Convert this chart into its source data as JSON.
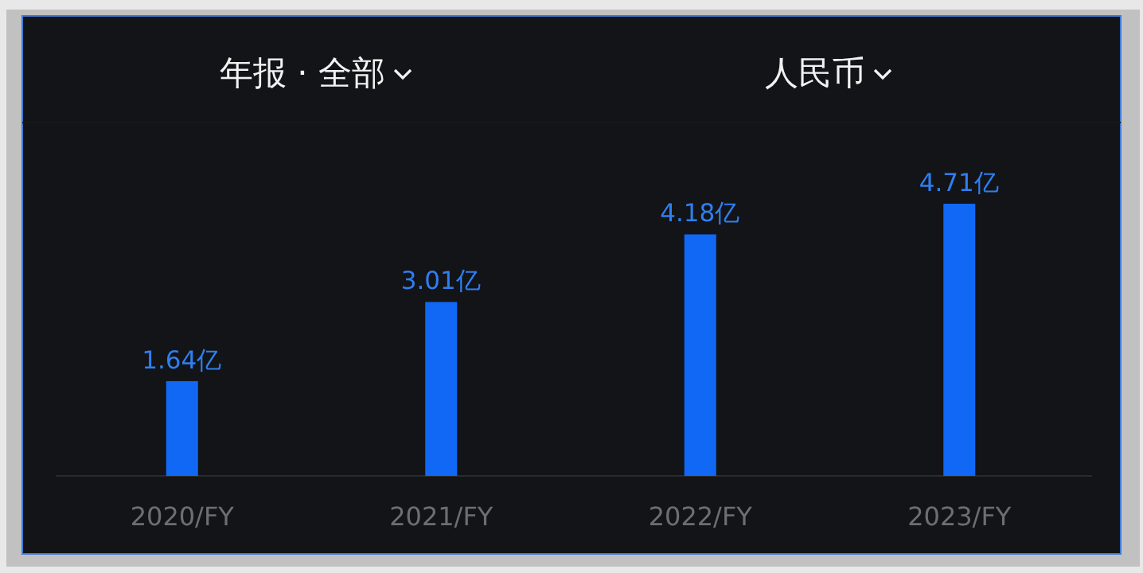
{
  "chart_data": {
    "type": "bar",
    "title": "年报 · 全部",
    "subtitle": "人民币",
    "categories": [
      "2020/FY",
      "2021/FY",
      "2022/FY",
      "2023/FY"
    ],
    "values": [
      1.64,
      3.01,
      4.18,
      4.71
    ],
    "color": "#1068f5",
    "value_labels": [
      "1.64亿",
      "3.01亿",
      "4.18亿",
      "4.71亿"
    ]
  }
}
